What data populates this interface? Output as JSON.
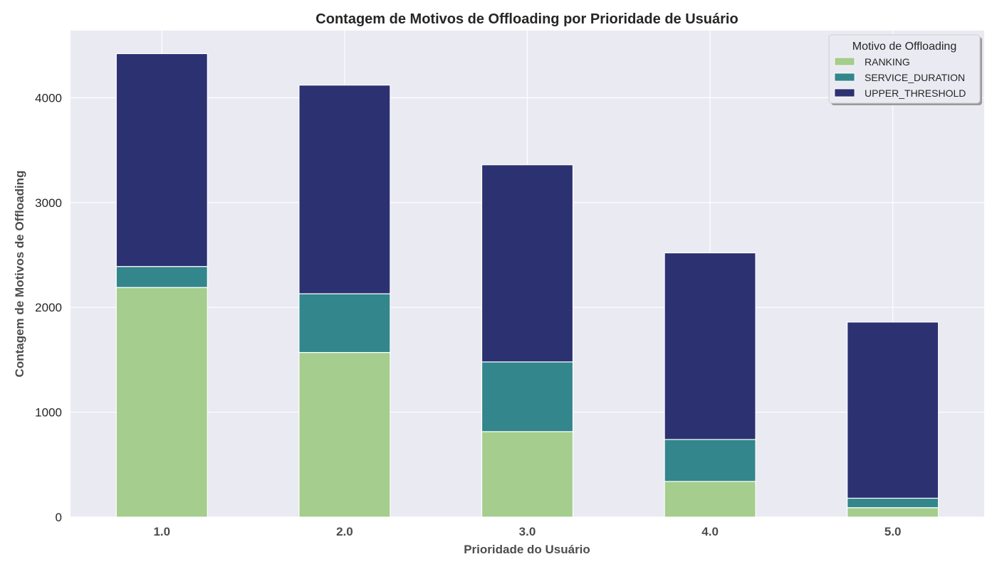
{
  "chart_data": {
    "type": "bar",
    "stacked": true,
    "title": "Contagem de Motivos de Offloading por Prioridade de Usuário",
    "xlabel": "Prioridade do Usuário",
    "ylabel": "Contagem de Motivos de Offloading",
    "categories": [
      "1.0",
      "2.0",
      "3.0",
      "4.0",
      "5.0"
    ],
    "series": [
      {
        "name": "RANKING",
        "color": "#a5cd8d",
        "values": [
          2190,
          1570,
          815,
          340,
          90
        ]
      },
      {
        "name": "SERVICE_DURATION",
        "color": "#33868c",
        "values": [
          200,
          560,
          665,
          400,
          90
        ]
      },
      {
        "name": "UPPER_THRESHOLD",
        "color": "#2c3172",
        "values": [
          2030,
          1990,
          1880,
          1780,
          1680
        ]
      }
    ],
    "ylim": [
      0,
      4640
    ],
    "yticks": [
      0,
      1000,
      2000,
      3000,
      4000
    ],
    "grid": true,
    "background": "#eaeaf2",
    "legend": {
      "title": "Motivo de Offloading",
      "position": "top-right"
    }
  }
}
